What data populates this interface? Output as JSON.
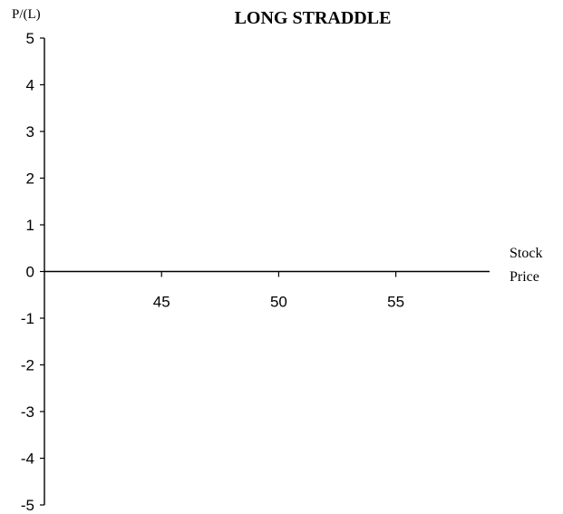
{
  "chart_data": {
    "type": "line",
    "title": "LONG STRADDLE",
    "ylabel": "P/(L)",
    "xlabel_lines": [
      "Stock",
      "Price"
    ],
    "xlim": [
      40,
      59
    ],
    "ylim": [
      -5,
      5
    ],
    "y_ticks": [
      5,
      4,
      3,
      2,
      1,
      0,
      -1,
      -2,
      -3,
      -4,
      -5
    ],
    "x_ticks": [
      45,
      50,
      55
    ],
    "series": [],
    "grid": false,
    "colors": {
      "axis": "#000000",
      "text": "#000000"
    }
  }
}
